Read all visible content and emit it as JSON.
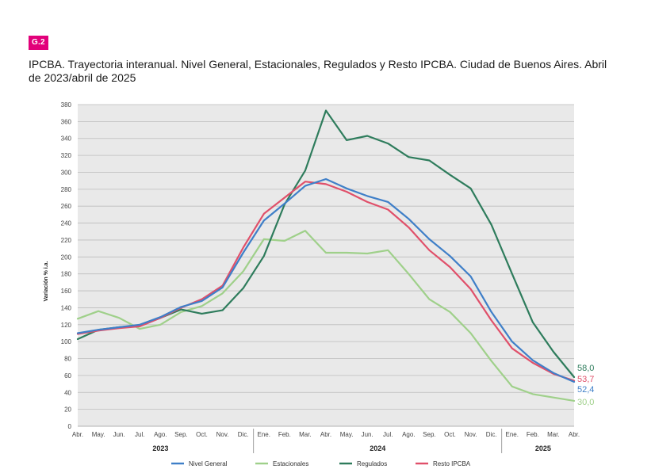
{
  "figure": {
    "badge": "G.2",
    "title": "IPCBA. Trayectoria interanual. Nivel General, Estacionales, Regulados y Resto IPCBA. Ciudad de Buenos Aires. Abril de 2023/abril de 2025"
  },
  "chart_data": {
    "type": "line",
    "ylabel": "Variación % i.a.",
    "ylim": [
      0,
      380
    ],
    "yticks": [
      0,
      20,
      40,
      60,
      80,
      100,
      120,
      140,
      160,
      180,
      200,
      220,
      240,
      260,
      280,
      300,
      320,
      340,
      360,
      380
    ],
    "grid": true,
    "legend_position": "bottom",
    "categories": [
      "Abr.",
      "May.",
      "Jun.",
      "Jul.",
      "Ago.",
      "Sep.",
      "Oct.",
      "Nov.",
      "Dic.",
      "Ene.",
      "Feb.",
      "Mar.",
      "Abr.",
      "May.",
      "Jun.",
      "Jul.",
      "Ago.",
      "Sep.",
      "Oct.",
      "Nov.",
      "Dic.",
      "Ene.",
      "Feb.",
      "Mar.",
      "Abr."
    ],
    "year_groups": [
      {
        "label": "2023",
        "start": 0,
        "end": 8
      },
      {
        "label": "2024",
        "start": 9,
        "end": 20
      },
      {
        "label": "2025",
        "start": 21,
        "end": 24
      }
    ],
    "series": [
      {
        "name": "Nivel General",
        "color": "#3f7fc8",
        "end_label": "52,4",
        "values": [
          110,
          114,
          117,
          120,
          129,
          141,
          148,
          164,
          205,
          243,
          263,
          284,
          292,
          281,
          272,
          265,
          245,
          221,
          201,
          177,
          135,
          100,
          78,
          63,
          52.4
        ]
      },
      {
        "name": "Estacionales",
        "color": "#9fd08a",
        "end_label": "30,0",
        "values": [
          127,
          136,
          128,
          115,
          120,
          135,
          142,
          157,
          183,
          221,
          219,
          231,
          205,
          205,
          204,
          208,
          180,
          150,
          135,
          110,
          77,
          47,
          38,
          34,
          30.0
        ]
      },
      {
        "name": "Regulados",
        "color": "#2e7c5c",
        "end_label": "58,0",
        "values": [
          103,
          114,
          117,
          119,
          128,
          138,
          133,
          137,
          163,
          201,
          262,
          302,
          373,
          338,
          343,
          334,
          318,
          314,
          297,
          281,
          238,
          180,
          123,
          88,
          58.0
        ]
      },
      {
        "name": "Resto IPCBA",
        "color": "#e0506a",
        "end_label": "53,7",
        "values": [
          109,
          113,
          116,
          118,
          128,
          140,
          150,
          166,
          211,
          251,
          270,
          289,
          286,
          277,
          265,
          256,
          235,
          208,
          188,
          162,
          125,
          92,
          75,
          62,
          53.7
        ]
      }
    ]
  }
}
